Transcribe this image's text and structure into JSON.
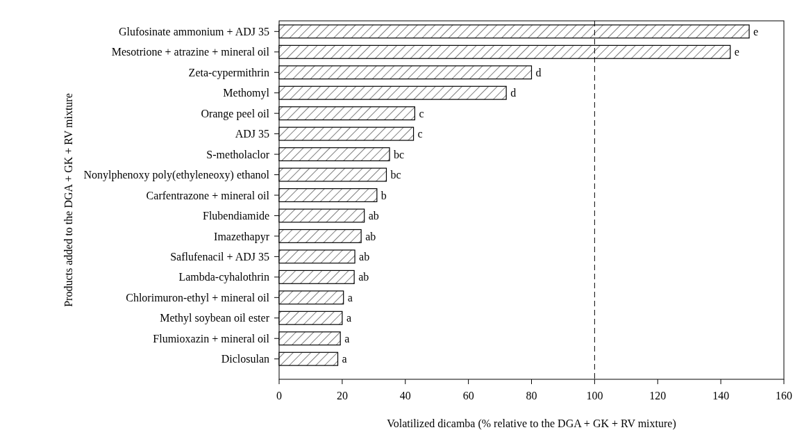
{
  "chart_data": {
    "type": "bar",
    "orientation": "horizontal",
    "xlabel": "Volatilized dicamba (% relative to the DGA + GK + RV mixture)",
    "ylabel": "Products added to the DGA + GK + RV mixture",
    "categories": [
      "Glufosinate ammonium + ADJ 35",
      "Mesotrione + atrazine + mineral oil",
      "Zeta-cypermithrin",
      "Methomyl",
      "Orange peel oil",
      "ADJ 35",
      "S-metholaclor",
      "Nonylphenoxy poly(ethyleneoxy) ethanol",
      "Carfentrazone + mineral oil",
      "Flubendiamide",
      "Imazethapyr",
      "Saflufenacil + ADJ 35",
      "Lambda-cyhalothrin",
      "Chlorimuron-ethyl + mineral oil",
      "Methyl soybean oil ester",
      "Flumioxazin + mineral oil",
      "Diclosulan"
    ],
    "values": [
      149,
      143,
      80,
      72,
      43,
      42.6,
      35,
      34,
      31,
      27,
      26,
      24,
      23.8,
      20.4,
      20,
      19.4,
      18.6
    ],
    "value_labels": [
      "e",
      "e",
      "d",
      "d",
      "c",
      "c",
      "bc",
      "bc",
      "b",
      "ab",
      "ab",
      "ab",
      "ab",
      "a",
      "a",
      "a",
      "a"
    ],
    "color": "#000000",
    "xlim": [
      0,
      160
    ],
    "xticks": [
      0,
      20,
      40,
      60,
      80,
      100,
      120,
      140,
      160
    ],
    "ref_lines": [
      {
        "axis": "x",
        "value": 100,
        "line_style": "dashed",
        "color": "#000000"
      }
    ],
    "grid": false
  }
}
